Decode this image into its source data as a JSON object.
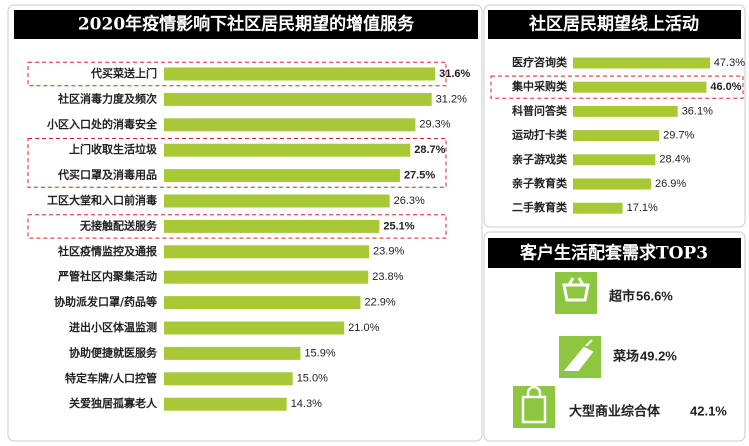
{
  "chart_data": [
    {
      "type": "bar",
      "title": "2020年疫情影响下社区居民期望的增值服务",
      "color": "#a8c935",
      "highlight_color": "#e02020",
      "categories": [
        "代买菜送上门",
        "社区消毒力度及频次",
        "小区入口处的消毒安全",
        "上门收取生活垃圾",
        "代买口罩及消毒用品",
        "工区大堂和入口前消毒",
        "无接触配送服务",
        "社区疫情监控及通报",
        "严管社区内聚集活动",
        "协助派发口罩/药品等",
        "进出小区体温监测",
        "协助便捷就医服务",
        "特定车牌/人口控管",
        "关爱独居孤寡老人"
      ],
      "values": [
        31.6,
        31.2,
        29.3,
        28.7,
        27.5,
        26.3,
        25.1,
        23.9,
        23.8,
        22.9,
        21.0,
        15.9,
        15.0,
        14.3
      ],
      "value_labels": [
        "31.6%",
        "31.2%",
        "29.3%",
        "28.7%",
        "27.5%",
        "26.3%",
        "25.1%",
        "23.9%",
        "23.8%",
        "22.9%",
        "21.0%",
        "15.9%",
        "15.0%",
        "14.3%"
      ],
      "highlight_groups": [
        [
          0
        ],
        [
          3,
          4
        ],
        [
          6
        ]
      ]
    },
    {
      "type": "bar",
      "title": "社区居民期望线上活动",
      "color": "#a8c935",
      "highlight_color": "#e02020",
      "categories": [
        "医疗咨询类",
        "集中采购类",
        "科普问答类",
        "运动打卡类",
        "亲子游戏类",
        "亲子教育类",
        "二手教育类"
      ],
      "values": [
        47.3,
        46.0,
        36.1,
        29.7,
        28.4,
        26.9,
        17.1
      ],
      "value_labels": [
        "47.3%",
        "46.0%",
        "36.1%",
        "29.7%",
        "28.4%",
        "26.9%",
        "17.1%"
      ],
      "highlight_groups": [
        [
          1
        ]
      ]
    }
  ],
  "top3": {
    "title": "客户生活配套需求TOP3",
    "items": [
      {
        "name": "超市",
        "value": "56.6%"
      },
      {
        "name": "菜场",
        "value": "49.2%"
      },
      {
        "name": "大型商业综合体",
        "value": "42.1%"
      }
    ]
  }
}
